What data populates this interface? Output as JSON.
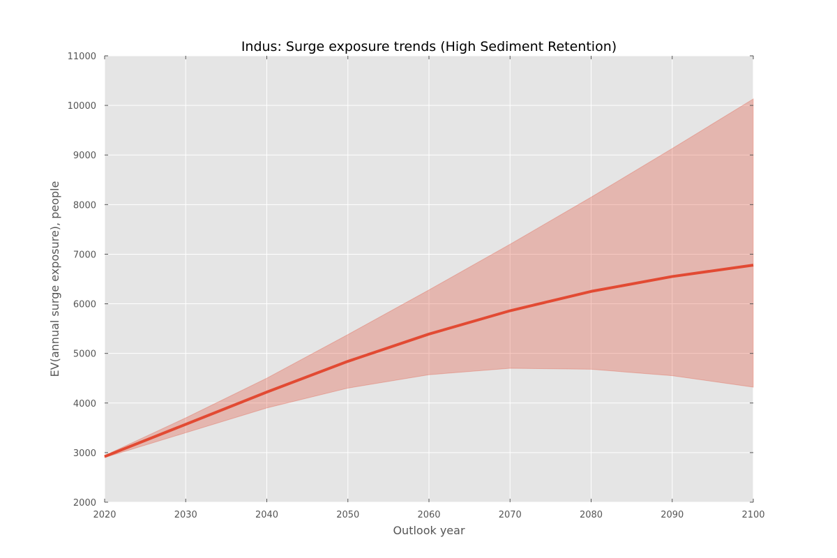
{
  "chart_data": {
    "type": "line",
    "title": "Indus: Surge exposure trends (High Sediment Retention)",
    "xlabel": "Outlook year",
    "ylabel": "EV(annual surge exposure), people",
    "xlim": [
      2020,
      2100
    ],
    "ylim": [
      2000,
      11000
    ],
    "xticks": [
      2020,
      2030,
      2040,
      2050,
      2060,
      2070,
      2080,
      2090,
      2100
    ],
    "yticks": [
      2000,
      3000,
      4000,
      5000,
      6000,
      7000,
      8000,
      9000,
      10000,
      11000
    ],
    "grid": true,
    "x": [
      2020,
      2030,
      2040,
      2050,
      2060,
      2070,
      2080,
      2090,
      2100
    ],
    "series": [
      {
        "values": [
          2920,
          3570,
          4220,
          4840,
          5390,
          5860,
          6250,
          6550,
          6780
        ],
        "band_lower": [
          2900,
          3400,
          3900,
          4300,
          4570,
          4700,
          4680,
          4550,
          4320
        ],
        "band_upper": [
          2940,
          3700,
          4500,
          5380,
          6280,
          7200,
          8150,
          9130,
          10130
        ]
      }
    ],
    "colors": {
      "line": "#e24a33",
      "band": "#e24a33",
      "plot_bg": "#e5e5e5",
      "grid": "#ffffff"
    }
  }
}
